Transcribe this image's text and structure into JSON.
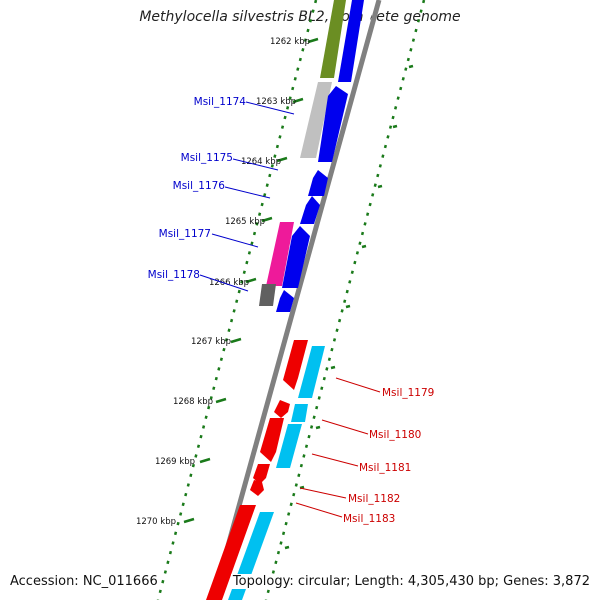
{
  "title": "Methylocella silvestris BL2, complete genome",
  "footer": {
    "accession": "Accession: NC_011666",
    "summary": "Topology: circular; Length: 4,305,430 bp; Genes: 3,872"
  },
  "colors": {
    "backbone": "#808080",
    "tick_green": "#1a7a1a",
    "blue_gene": "#0000ee",
    "cyan_gene": "#00c0f0",
    "red_gene": "#ee0000",
    "magenta_gene": "#ee1a9a",
    "olive_gene": "#6b8e23",
    "light_gray_gene": "#c0c0c0",
    "dark_gray_gene": "#606060",
    "label_blue": "#0000cc",
    "label_red": "#cc0000"
  },
  "ticks": [
    {
      "label": "1262 kbp"
    },
    {
      "label": "1263 kbp"
    },
    {
      "label": "1264 kbp"
    },
    {
      "label": "1265 kbp"
    },
    {
      "label": "1266 kbp"
    },
    {
      "label": "1267 kbp"
    },
    {
      "label": "1268 kbp"
    },
    {
      "label": "1269 kbp"
    },
    {
      "label": "1270 kbp"
    }
  ],
  "gene_labels_left": [
    "Msil_1174",
    "Msil_1175",
    "Msil_1176",
    "Msil_1177",
    "Msil_1178"
  ],
  "gene_labels_right": [
    "Msil_1179",
    "Msil_1180",
    "Msil_1181",
    "Msil_1182",
    "Msil_1183"
  ]
}
